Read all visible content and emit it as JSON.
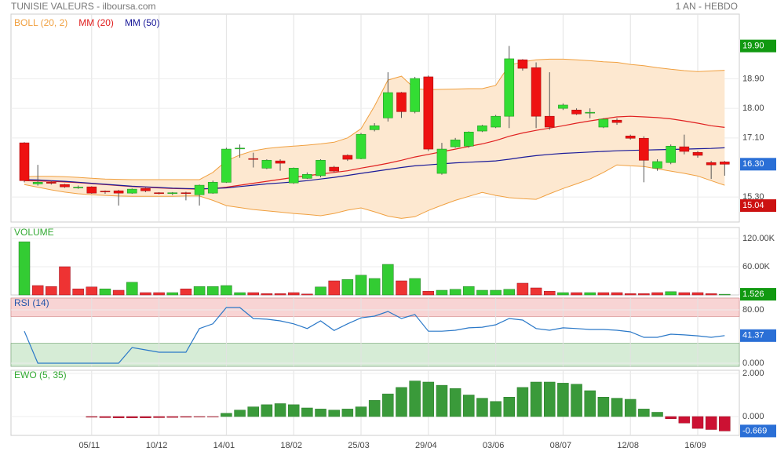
{
  "header": {
    "title": "TUNISIE VALEURS - ilboursa.com",
    "period": "1 AN - HEBDO"
  },
  "chart_data": [
    {
      "type": "candlestick",
      "categories": [
        null,
        null,
        null,
        null,
        null,
        "05/11",
        null,
        null,
        null,
        null,
        "10/12",
        null,
        null,
        null,
        null,
        "14/01",
        null,
        null,
        null,
        null,
        "18/02",
        null,
        null,
        null,
        null,
        "25/03",
        null,
        null,
        null,
        null,
        "29/04",
        null,
        null,
        null,
        null,
        "03/06",
        null,
        null,
        null,
        null,
        "08/07",
        null,
        null,
        null,
        null,
        "12/08",
        null,
        null,
        null,
        null,
        "16/09",
        null,
        null
      ],
      "open": [
        16.95,
        15.7,
        15.75,
        15.68,
        15.59,
        15.61,
        15.48,
        15.49,
        15.42,
        15.56,
        15.43,
        15.42,
        15.43,
        15.37,
        15.42,
        15.75,
        16.77,
        16.47,
        16.18,
        16.4,
        15.73,
        15.87,
        15.95,
        16.21,
        16.57,
        16.47,
        17.35,
        17.71,
        18.48,
        17.9,
        18.96,
        16.02,
        16.83,
        16.85,
        17.31,
        17.43,
        17.76,
        19.48,
        19.24,
        17.76,
        18.0,
        17.95,
        17.87,
        17.43,
        17.64,
        17.16,
        17.09,
        16.18,
        16.35,
        16.83,
        16.66,
        16.35,
        16.37
      ],
      "high": [
        16.97,
        16.28,
        15.8,
        15.7,
        15.65,
        15.63,
        15.5,
        15.52,
        15.56,
        15.58,
        15.45,
        15.45,
        15.46,
        15.68,
        15.8,
        16.8,
        16.9,
        16.65,
        16.45,
        16.45,
        16.2,
        16.05,
        16.45,
        16.25,
        16.6,
        17.25,
        17.55,
        19.1,
        18.5,
        18.96,
        19.0,
        16.95,
        17.1,
        17.3,
        17.5,
        17.8,
        19.9,
        19.5,
        19.4,
        19.1,
        18.15,
        18.0,
        18.0,
        17.7,
        17.7,
        17.2,
        17.15,
        16.45,
        16.9,
        17.2,
        16.7,
        16.4,
        16.4
      ],
      "low": [
        15.75,
        15.65,
        15.68,
        15.58,
        15.55,
        15.4,
        15.4,
        15.04,
        15.4,
        15.45,
        15.38,
        15.36,
        15.2,
        15.04,
        15.4,
        15.73,
        16.5,
        16.2,
        16.15,
        16.1,
        15.7,
        15.85,
        15.9,
        16.05,
        16.4,
        16.45,
        17.3,
        17.6,
        17.71,
        17.85,
        16.7,
        15.98,
        16.8,
        16.8,
        17.28,
        17.4,
        17.4,
        19.15,
        17.4,
        17.35,
        17.95,
        17.8,
        17.7,
        17.4,
        17.5,
        17.05,
        15.75,
        16.1,
        16.3,
        16.6,
        16.5,
        15.85,
        15.95
      ],
      "close": [
        15.8,
        15.75,
        15.72,
        15.61,
        15.6,
        15.42,
        15.46,
        15.42,
        15.54,
        15.49,
        15.42,
        15.43,
        15.42,
        15.66,
        15.75,
        16.76,
        16.79,
        16.45,
        16.42,
        16.33,
        16.18,
        15.99,
        16.42,
        16.09,
        16.45,
        17.21,
        17.47,
        18.48,
        17.9,
        18.91,
        16.76,
        16.76,
        17.04,
        17.28,
        17.47,
        17.76,
        19.51,
        19.22,
        17.76,
        17.43,
        18.1,
        17.83,
        17.88,
        17.67,
        17.57,
        17.09,
        16.42,
        16.38,
        16.85,
        16.69,
        16.57,
        16.28,
        16.3
      ],
      "up_color": "#33dd33",
      "down_color": "#ee1111",
      "overlays": [
        {
          "name": "BOLL (20, 2)",
          "color": "#f0a040",
          "fill": "#fde8d0",
          "upper": [
            15.92,
            15.93,
            15.93,
            15.92,
            15.9,
            15.87,
            15.85,
            15.84,
            15.83,
            15.83,
            15.83,
            15.83,
            15.83,
            15.83,
            16.05,
            16.4,
            16.58,
            16.71,
            16.78,
            16.82,
            16.85,
            16.88,
            16.92,
            16.97,
            17.1,
            17.38,
            18.07,
            18.86,
            18.98,
            18.6,
            18.57,
            18.58,
            18.59,
            18.6,
            18.6,
            18.7,
            19.31,
            19.42,
            19.48,
            19.5,
            19.5,
            19.48,
            19.45,
            19.42,
            19.4,
            19.34,
            19.3,
            19.24,
            19.19,
            19.15,
            19.12,
            19.14,
            19.16
          ],
          "lower": [
            15.68,
            15.6,
            15.52,
            15.45,
            15.4,
            15.37,
            15.35,
            15.33,
            15.32,
            15.32,
            15.32,
            15.32,
            15.33,
            15.33,
            15.2,
            15.04,
            14.98,
            14.92,
            14.88,
            14.84,
            14.8,
            14.77,
            14.73,
            14.8,
            14.9,
            14.97,
            14.85,
            14.72,
            14.65,
            14.7,
            14.89,
            15.05,
            15.2,
            15.32,
            15.44,
            15.35,
            15.28,
            15.25,
            15.23,
            15.4,
            15.56,
            15.7,
            15.85,
            16.05,
            16.28,
            16.25,
            16.23,
            16.16,
            16.09,
            16.02,
            15.94,
            15.8,
            15.66
          ]
        },
        {
          "name": "MM (20)",
          "color": "#e02020",
          "values": [
            15.8,
            15.79,
            15.78,
            15.76,
            15.74,
            15.71,
            15.68,
            15.65,
            15.62,
            15.6,
            15.58,
            15.56,
            15.55,
            15.54,
            15.56,
            15.6,
            15.66,
            15.72,
            15.78,
            15.84,
            15.9,
            15.95,
            16.0,
            16.05,
            16.1,
            16.18,
            16.25,
            16.33,
            16.42,
            16.52,
            16.6,
            16.68,
            16.76,
            16.84,
            16.92,
            17.02,
            17.15,
            17.25,
            17.33,
            17.4,
            17.47,
            17.55,
            17.62,
            17.68,
            17.74,
            17.76,
            17.74,
            17.72,
            17.68,
            17.62,
            17.55,
            17.47,
            17.42
          ]
        },
        {
          "name": "MM (50)",
          "color": "#1a1a99",
          "values": [
            15.83,
            15.82,
            15.8,
            15.78,
            15.75,
            15.72,
            15.69,
            15.66,
            15.63,
            15.61,
            15.59,
            15.57,
            15.56,
            15.55,
            15.56,
            15.58,
            15.62,
            15.66,
            15.7,
            15.73,
            15.76,
            15.8,
            15.85,
            15.9,
            15.96,
            16.02,
            16.08,
            16.14,
            16.2,
            16.25,
            16.28,
            16.31,
            16.34,
            16.36,
            16.38,
            16.4,
            16.45,
            16.51,
            16.56,
            16.6,
            16.63,
            16.65,
            16.67,
            16.69,
            16.71,
            16.72,
            16.73,
            16.74,
            16.75,
            16.76,
            16.77,
            16.78,
            16.8
          ]
        }
      ],
      "ylim": [
        14.54,
        20.87
      ],
      "yticks": [
        {
          "value": 15.3,
          "label": "15.30"
        },
        {
          "value": 17.1,
          "label": "17.10"
        },
        {
          "value": 18,
          "label": "18.00"
        },
        {
          "value": 18.9,
          "label": "18.90"
        }
      ],
      "flags": [
        {
          "value": 19.9,
          "label": "19.90",
          "color": "#119911"
        },
        {
          "value": 16.3,
          "label": "16.30",
          "color": "#2a6fd6"
        },
        {
          "value": 15.04,
          "label": "15.04",
          "color": "#cc1111"
        }
      ],
      "grid": true
    },
    {
      "type": "bar",
      "title": "VOLUME",
      "title_color": "#33aa33",
      "up_color": "#33cc33",
      "down_color": "#ee3333",
      "values": [
        113,
        20,
        18,
        60,
        13,
        17,
        13,
        10,
        27,
        5,
        5,
        5,
        13,
        18,
        18,
        20,
        5,
        5,
        3,
        3,
        5,
        2,
        17,
        30,
        33,
        42,
        35,
        65,
        30,
        35,
        8,
        10,
        12,
        18,
        10,
        10,
        12,
        25,
        15,
        8,
        5,
        5,
        5,
        5,
        5,
        3,
        3,
        5,
        7,
        5,
        5,
        3,
        1.526
      ],
      "ylim": [
        0,
        143.3
      ],
      "yticks": [
        {
          "value": 60,
          "label": "60.00K"
        },
        {
          "value": 120,
          "label": "120.00K"
        }
      ],
      "flags": [
        {
          "value": 1.526,
          "label": "1.526",
          "color": "#119911"
        }
      ],
      "grid": true
    },
    {
      "type": "line",
      "title": "RSI (14)",
      "title_color": "#2255aa",
      "color": "#2a78c8",
      "values": [
        48,
        0,
        0,
        0,
        0,
        0,
        0,
        0,
        23.5,
        20,
        16.5,
        16.5,
        16.5,
        52,
        59,
        83.5,
        83.5,
        67,
        66,
        63.5,
        59,
        52,
        63.5,
        49,
        59,
        68,
        70.5,
        77.6,
        67,
        73,
        48,
        48,
        49.4,
        53,
        54,
        57.6,
        67,
        64.7,
        52,
        49.4,
        53,
        52,
        50.6,
        50.6,
        49.4,
        47,
        38.8,
        38.8,
        43.5,
        42.4,
        41,
        38.8,
        41.37
      ],
      "ylim": [
        -4.7,
        97.6
      ],
      "yticks": [
        {
          "value": 0,
          "label": "0.000"
        },
        {
          "value": 80,
          "label": "80.00"
        }
      ],
      "overbought": 70,
      "oversold": 30,
      "overbought_color": "#f8d4d4",
      "oversold_color": "#d6ecd6",
      "flags": [
        {
          "value": 41.37,
          "label": "41.37",
          "color": "#2a6fd6"
        }
      ],
      "grid": true
    },
    {
      "type": "bar",
      "title": "EWO (5, 35)",
      "title_color": "#33aa33",
      "up_color": "#3a9a3a",
      "down_color": "#cc1133",
      "values": [
        null,
        null,
        null,
        null,
        null,
        -0.03,
        -0.05,
        -0.06,
        -0.06,
        -0.06,
        -0.05,
        -0.04,
        -0.03,
        -0.02,
        -0.01,
        0.15,
        0.3,
        0.45,
        0.55,
        0.6,
        0.55,
        0.4,
        0.35,
        0.3,
        0.35,
        0.45,
        0.75,
        1.05,
        1.35,
        1.65,
        1.6,
        1.45,
        1.3,
        1.0,
        0.85,
        0.7,
        0.9,
        1.35,
        1.6,
        1.6,
        1.55,
        1.5,
        1.2,
        0.9,
        0.85,
        0.8,
        0.35,
        0.2,
        -0.1,
        -0.3,
        -0.55,
        -0.6,
        -0.669
      ],
      "ylim": [
        -0.873,
        2.145
      ],
      "yticks": [
        {
          "value": 0,
          "label": "0.000"
        },
        {
          "value": 2,
          "label": "2.000"
        }
      ],
      "flags": [
        {
          "value": -0.669,
          "label": "-0.669",
          "color": "#2a6fd6"
        }
      ],
      "grid": true
    }
  ]
}
